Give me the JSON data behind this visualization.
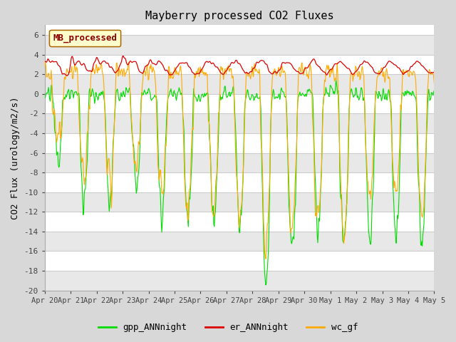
{
  "title": "Mayberry processed CO2 Fluxes",
  "ylabel": "CO2 Flux (urology/m2/s)",
  "ylim": [
    -20,
    7
  ],
  "yticks": [
    -20,
    -18,
    -16,
    -14,
    -12,
    -10,
    -8,
    -6,
    -4,
    -2,
    0,
    2,
    4,
    6
  ],
  "background_color": "#d8d8d8",
  "plot_bg_color": "#ffffff",
  "grid_color": "#cccccc",
  "alt_band_color": "#e8e8e8",
  "legend_label": "MB_processed",
  "legend_bg": "#ffffcc",
  "legend_border": "#aa6600",
  "legend_text_color": "#880000",
  "series": {
    "gpp_ANNnight": {
      "color": "#00dd00",
      "linewidth": 0.8
    },
    "er_ANNnight": {
      "color": "#dd0000",
      "linewidth": 0.9
    },
    "wc_gf": {
      "color": "#ffaa00",
      "linewidth": 0.8
    }
  },
  "n_days": 15,
  "points_per_day": 48,
  "xtick_labels": [
    "Apr 20",
    "Apr 21",
    "Apr 22",
    "Apr 23",
    "Apr 24",
    "Apr 25",
    "Apr 26",
    "Apr 27",
    "Apr 28",
    "Apr 29",
    "Apr 30",
    "May 1",
    "May 2",
    "May 3",
    "May 4",
    "May 5"
  ]
}
